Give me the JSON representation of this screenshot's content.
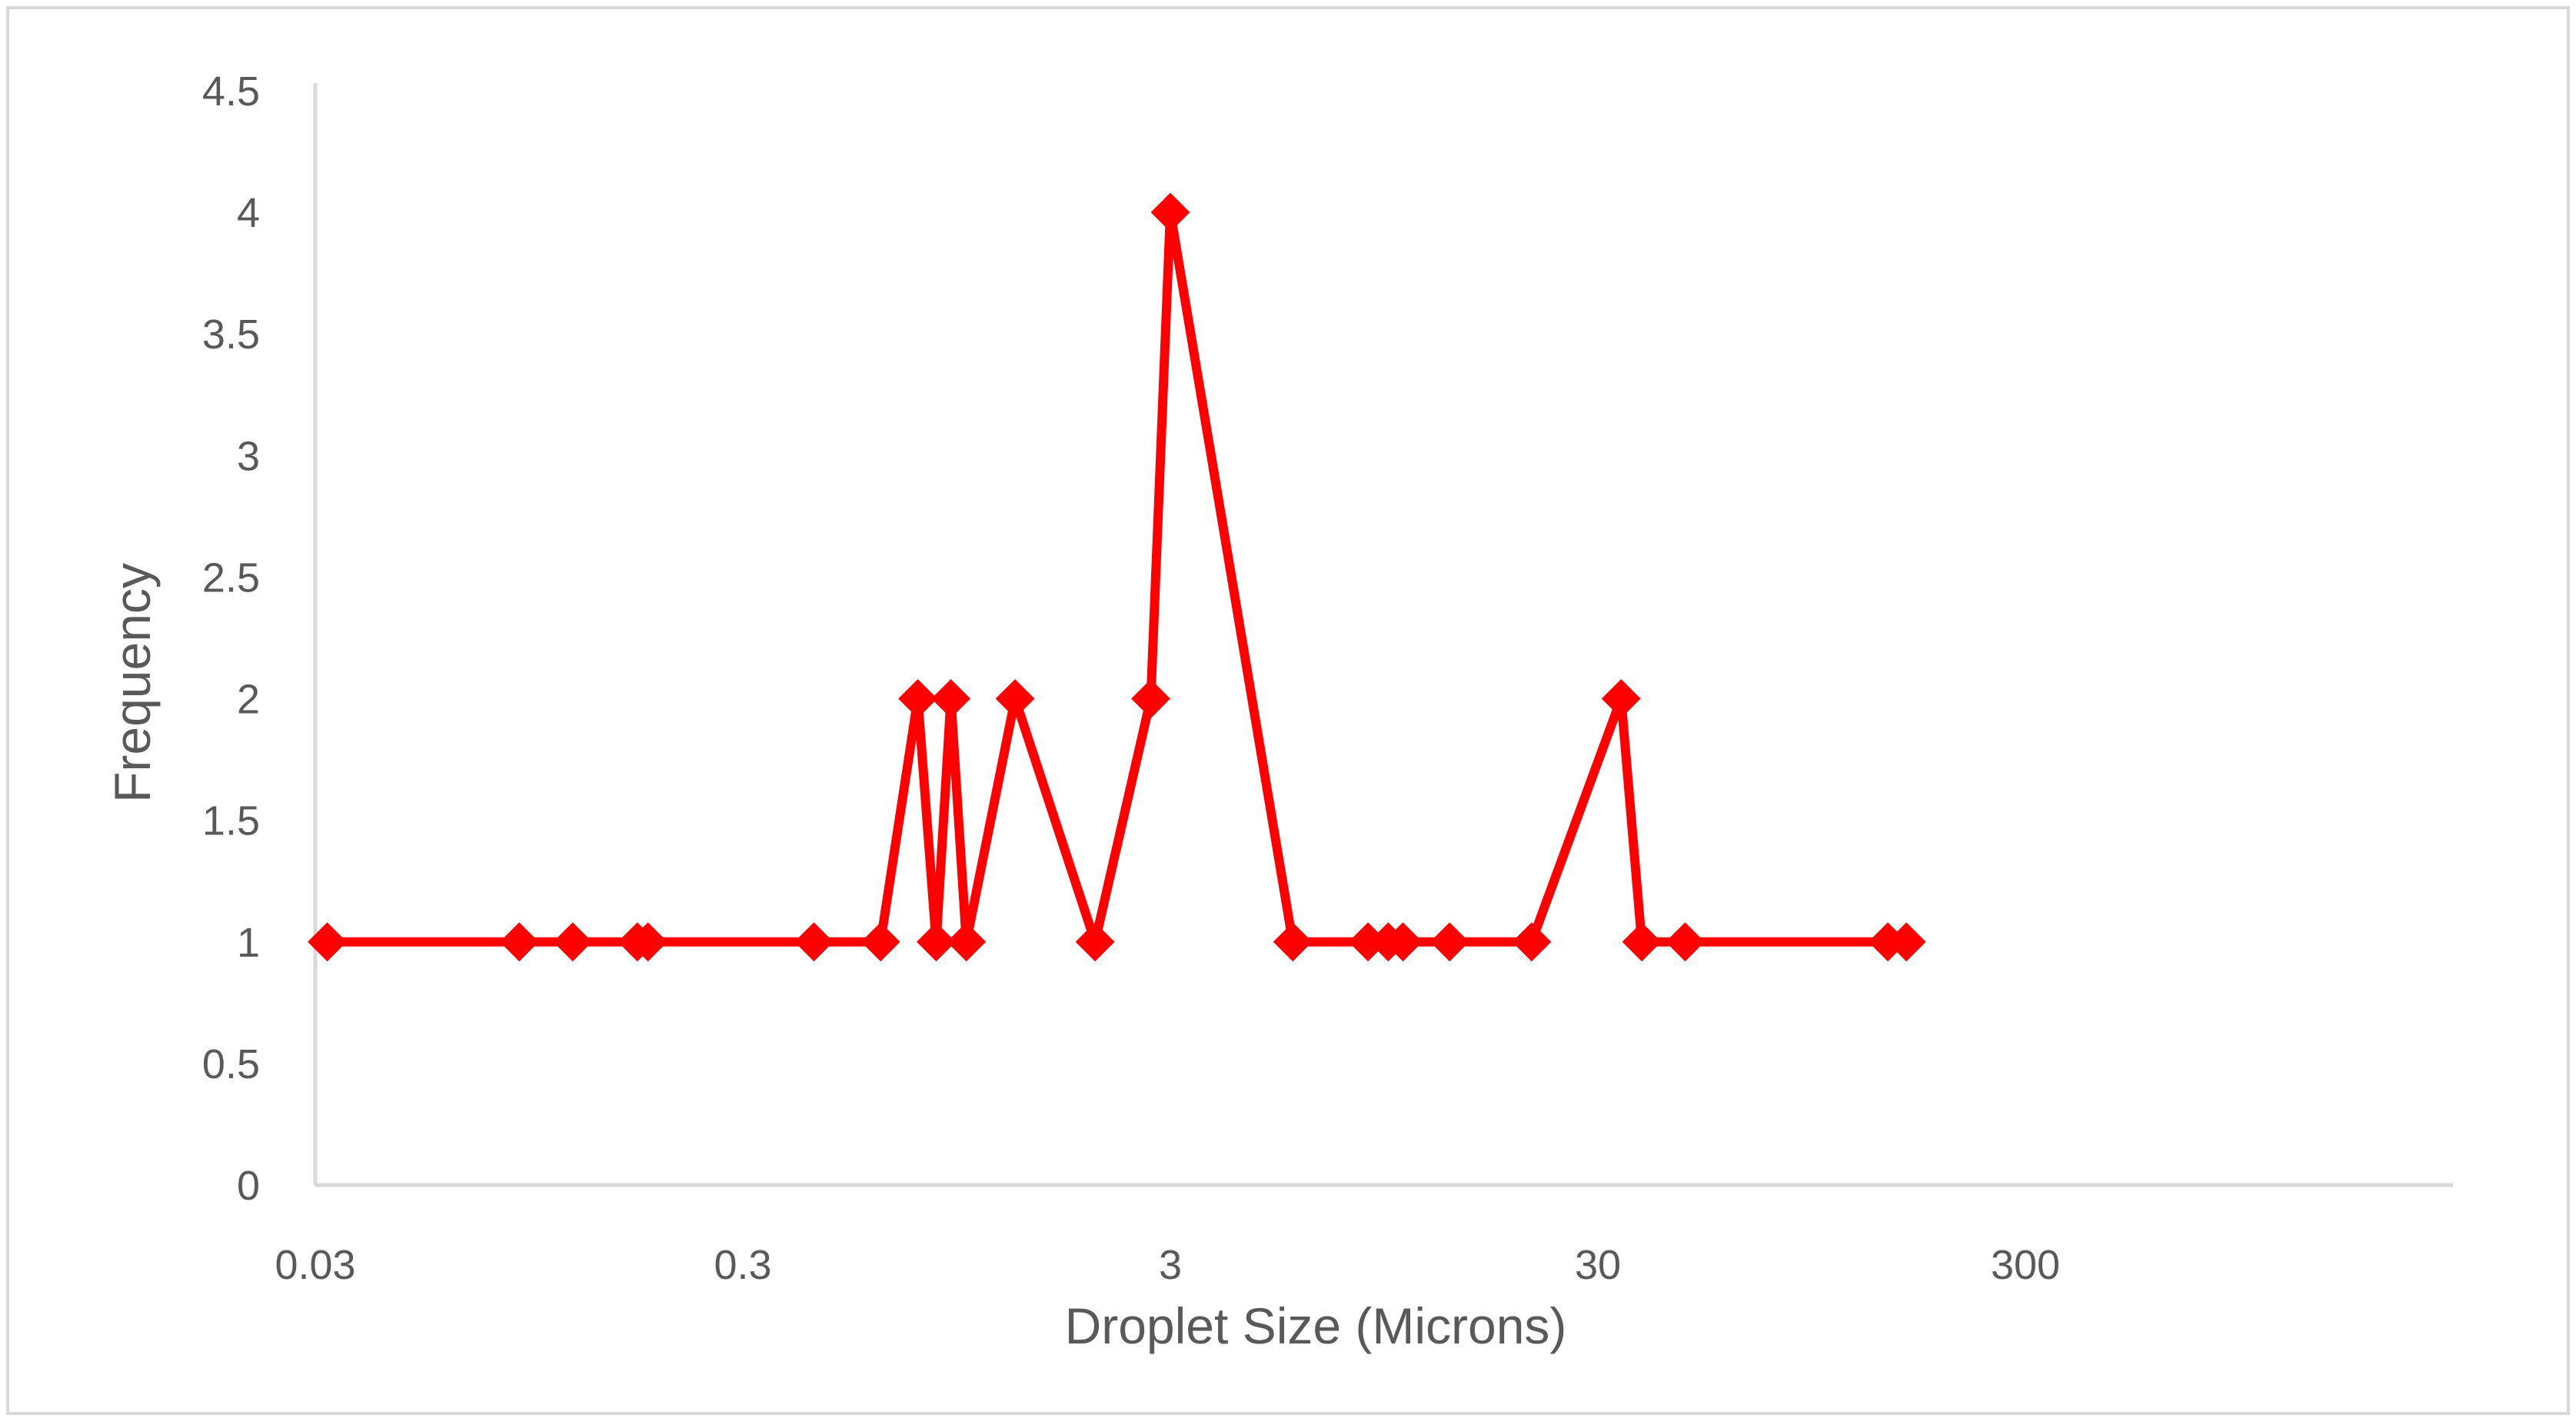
{
  "chart_data": {
    "type": "line",
    "title": "",
    "xlabel": "Droplet Size (Microns)",
    "ylabel": "Frequency",
    "x_scale": "log",
    "x_ticks": [
      0.03,
      0.3,
      3,
      30,
      300
    ],
    "x_tick_labels": [
      "0.03",
      "0.3",
      "3",
      "30",
      "300"
    ],
    "xlim": [
      0.03,
      3000
    ],
    "y_ticks": [
      0,
      0.5,
      1,
      1.5,
      2,
      2.5,
      3,
      3.5,
      4,
      4.5
    ],
    "y_tick_labels": [
      "0",
      "0.5",
      "1",
      "1.5",
      "2",
      "2.5",
      "3",
      "3.5",
      "4",
      "4.5"
    ],
    "ylim": [
      0,
      4.5
    ],
    "grid": false,
    "legend": "none",
    "series": [
      {
        "color": "#ff0000",
        "marker": "diamond",
        "x": [
          0.032,
          0.09,
          0.12,
          0.17,
          0.18,
          0.44,
          0.63,
          0.77,
          0.85,
          0.92,
          1.0,
          1.3,
          2.0,
          2.7,
          3.0,
          5.8,
          8.7,
          9.7,
          10.5,
          13.5,
          21,
          34,
          38,
          48,
          143,
          158
        ],
        "y": [
          1,
          1,
          1,
          1,
          1,
          1,
          1,
          2,
          1,
          2,
          1,
          2,
          1,
          2,
          4,
          1,
          1,
          1,
          1,
          1,
          1,
          2,
          1,
          1,
          1,
          1
        ]
      }
    ]
  }
}
